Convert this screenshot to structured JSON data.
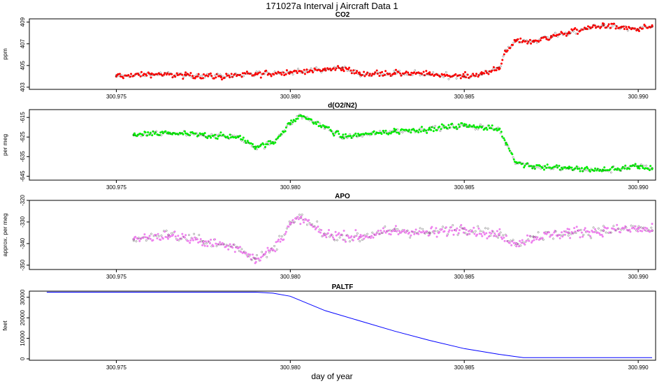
{
  "figure": {
    "title": "171027a   Interval j Aircraft Data 1",
    "xlabel": "day of year"
  },
  "colors": {
    "co2": "#ff0000",
    "o2n2": "#00ee00",
    "apo": "#ee82ee",
    "paltf": "#0000ff",
    "axis": "#000000"
  },
  "chart_data": [
    {
      "type": "scatter",
      "title": "CO2",
      "ylabel": "ppm",
      "xlim": [
        300.9725,
        300.9905
      ],
      "ylim": [
        402.8,
        409.3
      ],
      "xticks": [
        "300.975",
        "300.980",
        "300.985",
        "300.990"
      ],
      "xtick_values": [
        300.975,
        300.98,
        300.985,
        300.99
      ],
      "yticks": [
        "403",
        "405",
        "407",
        "409"
      ],
      "ytick_values": [
        403,
        405,
        407,
        409
      ],
      "series": [
        {
          "name": "CO2",
          "x": [
            300.975,
            300.976,
            300.977,
            300.978,
            300.979,
            300.98,
            300.981,
            300.9815,
            300.982,
            300.983,
            300.984,
            300.985,
            300.9855,
            300.986,
            300.9862,
            300.9865,
            300.987,
            300.9875,
            300.988,
            300.9885,
            300.989,
            300.9895,
            300.99,
            300.9904
          ],
          "y": [
            404.0,
            404.2,
            404.1,
            404.0,
            404.2,
            404.4,
            404.6,
            404.8,
            404.2,
            404.3,
            404.2,
            404.0,
            404.2,
            404.8,
            406.3,
            407.3,
            407.2,
            407.7,
            408.0,
            408.4,
            408.7,
            408.5,
            408.3,
            408.6
          ]
        }
      ]
    },
    {
      "type": "scatter",
      "title": "d(O2/N2)",
      "ylabel": "per meg",
      "xlim": [
        300.9725,
        300.9905
      ],
      "ylim": [
        -647,
        -611
      ],
      "xticks": [
        "300.975",
        "300.980",
        "300.985",
        "300.990"
      ],
      "xtick_values": [
        300.975,
        300.98,
        300.985,
        300.99
      ],
      "yticks": [
        "-645",
        "-635",
        "-625",
        "-615"
      ],
      "ytick_values": [
        -645,
        -635,
        -625,
        -615
      ],
      "series": [
        {
          "name": "d(O2/N2)",
          "x": [
            300.9755,
            300.9765,
            300.9775,
            300.9785,
            300.979,
            300.9795,
            300.98,
            300.9803,
            300.981,
            300.9815,
            300.982,
            300.983,
            300.984,
            300.985,
            300.9855,
            300.986,
            300.9862,
            300.9865,
            300.987,
            300.988,
            300.989,
            300.99,
            300.9904
          ],
          "y": [
            -624,
            -623,
            -624,
            -625,
            -630,
            -628,
            -618,
            -614,
            -620,
            -625,
            -624,
            -622,
            -621,
            -619,
            -620,
            -621,
            -628,
            -638,
            -640,
            -641,
            -642,
            -640,
            -641
          ]
        }
      ]
    },
    {
      "type": "scatter",
      "title": "APO",
      "ylabel": "approx. per meg",
      "xlim": [
        300.9725,
        300.9905
      ],
      "ylim": [
        -352,
        -320
      ],
      "xticks": [
        "300.975",
        "300.980",
        "300.985",
        "300.990"
      ],
      "xtick_values": [
        300.975,
        300.98,
        300.985,
        300.99
      ],
      "yticks": [
        "-350",
        "-340",
        "-330",
        "-320"
      ],
      "ytick_values": [
        -350,
        -340,
        -330,
        -320
      ],
      "series": [
        {
          "name": "APO",
          "x": [
            300.9755,
            300.9765,
            300.9775,
            300.9785,
            300.979,
            300.9795,
            300.98,
            300.9803,
            300.981,
            300.982,
            300.983,
            300.984,
            300.985,
            300.986,
            300.9865,
            300.987,
            300.988,
            300.989,
            300.99,
            300.9904
          ],
          "y": [
            -338,
            -336,
            -339,
            -342,
            -347,
            -343,
            -331,
            -328,
            -336,
            -337,
            -334,
            -335,
            -333,
            -336,
            -340,
            -337,
            -335,
            -334,
            -333,
            -334
          ]
        }
      ]
    },
    {
      "type": "line",
      "title": "PALTF",
      "ylabel": "feet",
      "xlim": [
        300.9725,
        300.9905
      ],
      "ylim": [
        -700,
        33000
      ],
      "xticks": [
        "300.975",
        "300.980",
        "300.985",
        "300.990"
      ],
      "xtick_values": [
        300.975,
        300.98,
        300.985,
        300.99
      ],
      "yticks": [
        "0",
        "10000",
        "20000",
        "30000"
      ],
      "ytick_values": [
        0,
        10000,
        20000,
        30000
      ],
      "series": [
        {
          "name": "PALTF",
          "x": [
            300.973,
            300.975,
            300.977,
            300.979,
            300.9795,
            300.98,
            300.981,
            300.982,
            300.983,
            300.984,
            300.985,
            300.986,
            300.9867,
            300.988,
            300.99,
            300.9904
          ],
          "y": [
            32500,
            32500,
            32500,
            32500,
            32000,
            30500,
            23500,
            18500,
            13500,
            9000,
            5000,
            2200,
            600,
            600,
            600,
            600
          ]
        }
      ]
    }
  ]
}
